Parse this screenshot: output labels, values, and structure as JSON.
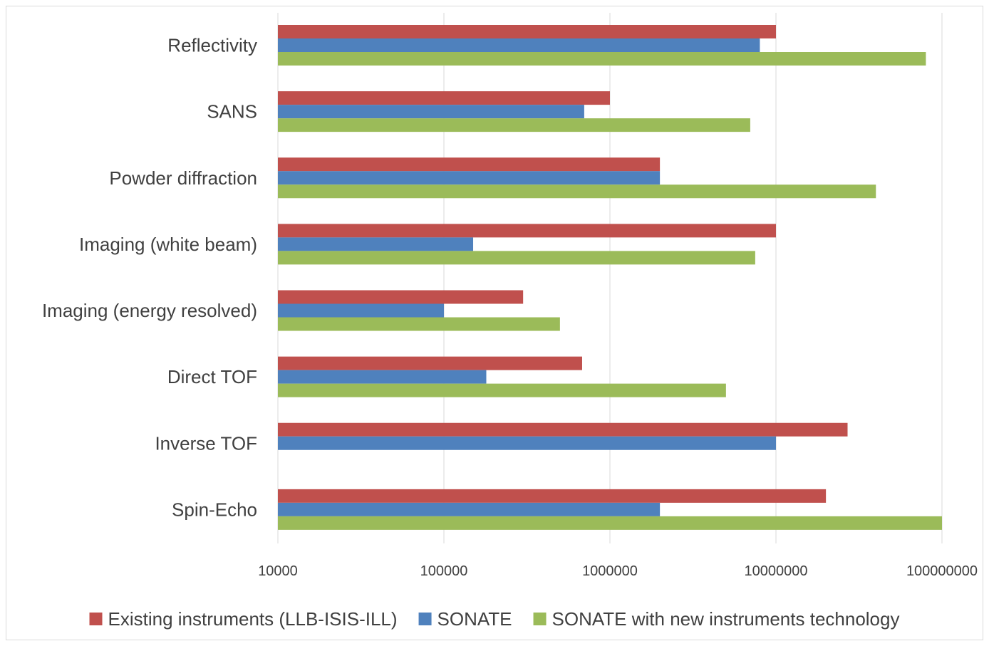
{
  "chart_data": {
    "type": "bar",
    "orientation": "horizontal",
    "x_scale": "log",
    "xlim": [
      10000,
      100000000
    ],
    "x_ticks": [
      10000,
      100000,
      1000000,
      10000000,
      100000000
    ],
    "x_tick_labels": [
      "10000",
      "100000",
      "1000000",
      "10000000",
      "100000000"
    ],
    "grid": true,
    "legend_position": "bottom",
    "title": "",
    "xlabel": "",
    "ylabel": "",
    "categories": [
      "Reflectivity",
      "SANS",
      "Powder diffraction",
      "Imaging (white beam)",
      "Imaging (energy resolved)",
      "Direct TOF",
      "Inverse TOF",
      "Spin-Echo"
    ],
    "series": [
      {
        "name": "Existing instruments (LLB-ISIS-ILL)",
        "color": "#c0504d",
        "values": [
          10000000,
          1000000,
          2000000,
          10000000,
          300000,
          680000,
          27000000,
          20000000
        ]
      },
      {
        "name": "SONATE",
        "color": "#4f81bd",
        "values": [
          8000000,
          700000,
          2000000,
          150000,
          100000,
          180000,
          10000000,
          2000000
        ]
      },
      {
        "name": "SONATE with new instruments technology",
        "color": "#9bbb59",
        "values": [
          80000000,
          7000000,
          40000000,
          7500000,
          500000,
          5000000,
          null,
          100000000
        ]
      }
    ]
  }
}
